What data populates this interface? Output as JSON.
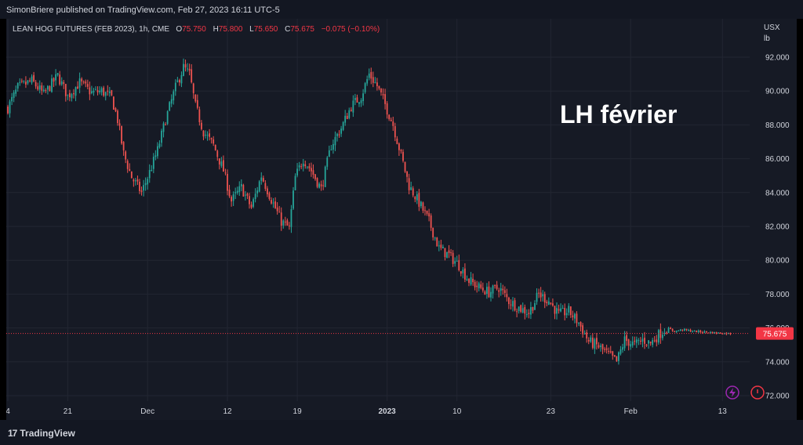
{
  "header": {
    "attribution": "SimonBriere published on TradingView.com, Feb 27, 2023 16:11 UTC-5"
  },
  "legend": {
    "symbol": "LEAN HOG FUTURES (FEB 2023), 1h, CME",
    "o_label": "O",
    "o_value": "75.750",
    "h_label": "H",
    "h_value": "75.800",
    "l_label": "L",
    "l_value": "75.650",
    "c_label": "C",
    "c_value": "75.675",
    "change": "−0.075 (−0.10%)"
  },
  "annotation": "LH février",
  "axis": {
    "currency": "USX",
    "unit": "lb"
  },
  "footer": {
    "brand": "TradingView",
    "logo_glyph": "17"
  },
  "colors": {
    "up": "#26a69a",
    "down": "#ef5350",
    "last_price": "#f23645",
    "background": "#161a25"
  },
  "icons": [
    "lightning-icon",
    "alert-clock-icon"
  ],
  "chart_data": {
    "type": "candlestick",
    "symbol": "LEAN HOG FUTURES (FEB 2023)",
    "interval": "1h",
    "ylim": [
      71.7,
      93.2
    ],
    "y_ticks": [
      "72.000",
      "74.000",
      "76.000",
      "78.000",
      "80.000",
      "82.000",
      "84.000",
      "86.000",
      "88.000",
      "90.000",
      "92.000"
    ],
    "x_ticks": [
      {
        "label": "4",
        "i": 0
      },
      {
        "label": "21",
        "i": 30
      },
      {
        "label": "Dec",
        "i": 70
      },
      {
        "label": "12",
        "i": 110
      },
      {
        "label": "19",
        "i": 145
      },
      {
        "label": "2023",
        "i": 190
      },
      {
        "label": "10",
        "i": 225
      },
      {
        "label": "23",
        "i": 272
      },
      {
        "label": "Feb",
        "i": 312
      },
      {
        "label": "13",
        "i": 358
      }
    ],
    "last_price": 75.675,
    "last_price_label": "75.675",
    "close_path": [
      [
        0,
        89.0
      ],
      [
        5,
        90.2
      ],
      [
        12,
        90.6
      ],
      [
        18,
        89.8
      ],
      [
        25,
        90.9
      ],
      [
        30,
        89.7
      ],
      [
        36,
        90.5
      ],
      [
        42,
        89.9
      ],
      [
        47,
        90.0
      ],
      [
        52,
        89.6
      ],
      [
        55,
        88.3
      ],
      [
        58,
        86.3
      ],
      [
        62,
        84.9
      ],
      [
        67,
        84.0
      ],
      [
        71,
        85.2
      ],
      [
        75,
        86.5
      ],
      [
        79,
        88.3
      ],
      [
        84,
        90.2
      ],
      [
        88,
        91.4
      ],
      [
        91,
        91.0
      ],
      [
        94,
        89.1
      ],
      [
        98,
        87.6
      ],
      [
        103,
        86.8
      ],
      [
        108,
        85.3
      ],
      [
        112,
        83.5
      ],
      [
        117,
        84.3
      ],
      [
        122,
        83.1
      ],
      [
        127,
        85.0
      ],
      [
        132,
        83.6
      ],
      [
        137,
        82.3
      ],
      [
        141,
        81.9
      ],
      [
        144,
        84.9
      ],
      [
        148,
        86.0
      ],
      [
        152,
        85.3
      ],
      [
        157,
        84.2
      ],
      [
        162,
        86.8
      ],
      [
        167,
        87.8
      ],
      [
        172,
        89.1
      ],
      [
        177,
        89.7
      ],
      [
        181,
        91.0
      ],
      [
        185,
        90.3
      ],
      [
        189,
        89.2
      ],
      [
        193,
        88.0
      ],
      [
        197,
        86.2
      ],
      [
        201,
        84.4
      ],
      [
        206,
        83.4
      ],
      [
        211,
        82.3
      ],
      [
        216,
        80.7
      ],
      [
        221,
        80.3
      ],
      [
        226,
        79.7
      ],
      [
        231,
        78.8
      ],
      [
        236,
        78.4
      ],
      [
        241,
        78.1
      ],
      [
        246,
        78.4
      ],
      [
        251,
        77.6
      ],
      [
        256,
        77.2
      ],
      [
        261,
        76.9
      ],
      [
        266,
        78.0
      ],
      [
        271,
        77.6
      ],
      [
        276,
        76.8
      ],
      [
        281,
        77.0
      ],
      [
        286,
        76.3
      ],
      [
        291,
        75.2
      ],
      [
        296,
        74.9
      ],
      [
        301,
        74.4
      ],
      [
        305,
        74.0
      ],
      [
        309,
        75.3
      ],
      [
        314,
        75.0
      ],
      [
        318,
        75.3
      ],
      [
        322,
        75.1
      ],
      [
        326,
        75.6
      ],
      [
        330,
        76.0
      ],
      [
        334,
        75.8
      ],
      [
        338,
        75.9
      ],
      [
        344,
        75.8
      ],
      [
        350,
        75.75
      ],
      [
        356,
        75.7
      ],
      [
        362,
        75.675
      ]
    ]
  }
}
